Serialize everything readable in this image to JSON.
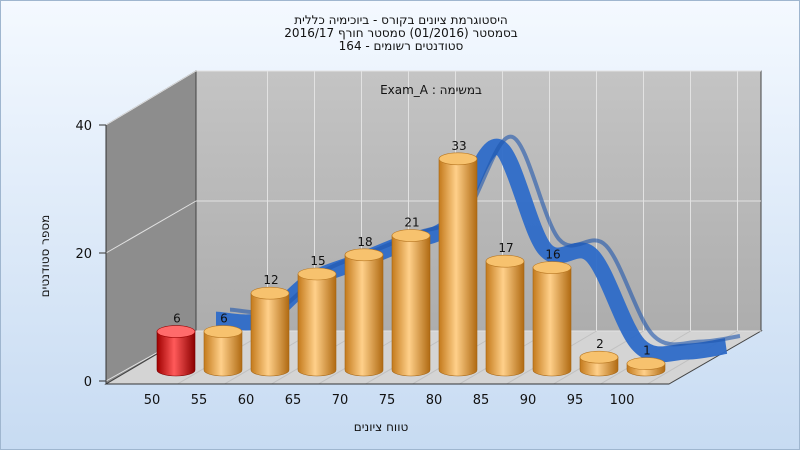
{
  "chart_data": {
    "type": "bar",
    "title_lines": [
      "היסטוגרמת ציונים בקורס - ביוכימיה כללית",
      "בסמסטר  (01/2016)  סמסטר חורף 2016/17",
      "סטודנטים רשומים - 164"
    ],
    "annotation": "Exam_A : במשימה",
    "xlabel": "טווח ציונים",
    "ylabel": "מספר סטודנטים",
    "ylim": [
      0,
      40
    ],
    "yticks": [
      0,
      20,
      40
    ],
    "categories": [
      "50",
      "55",
      "60",
      "65",
      "70",
      "75",
      "80",
      "85",
      "90",
      "95",
      "100"
    ],
    "values": [
      6,
      6,
      12,
      15,
      18,
      21,
      33,
      17,
      16,
      2,
      1
    ],
    "highlight_categories": [
      "50"
    ],
    "colors": {
      "bar": "#e8a64a",
      "bar_highlight": "#e01818",
      "curve": "#2e6cc8",
      "back_wall": "#b9b9b9",
      "side_wall": "#8a8a8a",
      "floor": "#d6d6d6"
    },
    "grid": true,
    "legend": "none"
  }
}
